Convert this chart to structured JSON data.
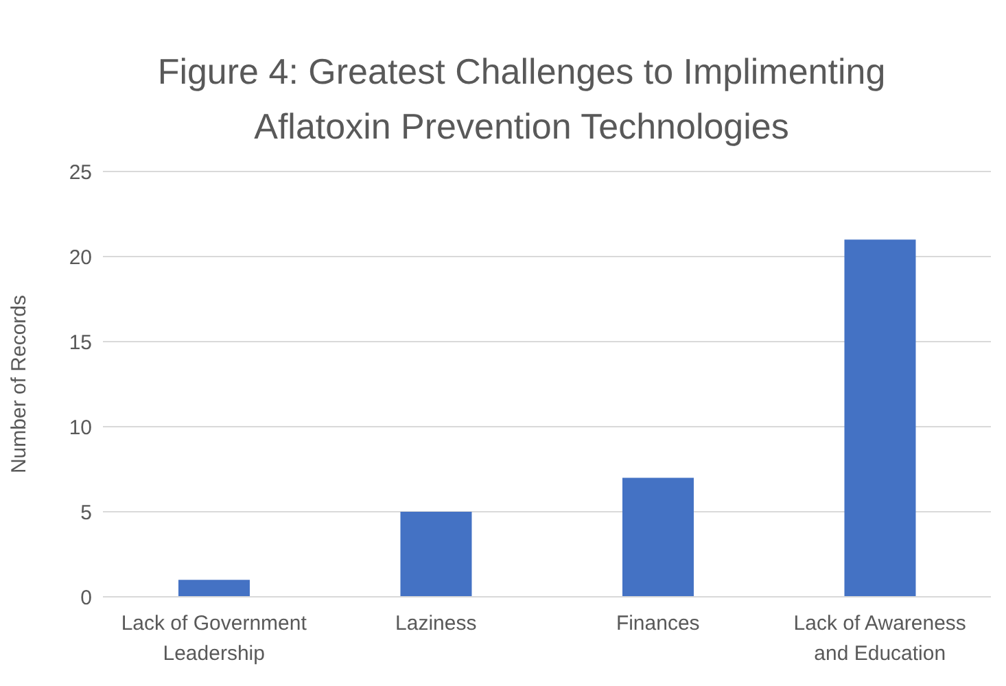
{
  "chart_data": {
    "type": "bar",
    "title": "Figure 4: Greatest Challenges to Implimenting Aflatoxin Prevention Technologies",
    "ylabel": "Number of Records",
    "categories": [
      "Lack of Government Leadership",
      "Laziness",
      "Finances",
      "Lack of Awareness and Education"
    ],
    "values": [
      1,
      5,
      7,
      21
    ],
    "color": "#4472c4",
    "ylim": [
      0,
      25
    ],
    "yticks": [
      0,
      5,
      10,
      15,
      20,
      25
    ],
    "grid": "y"
  }
}
